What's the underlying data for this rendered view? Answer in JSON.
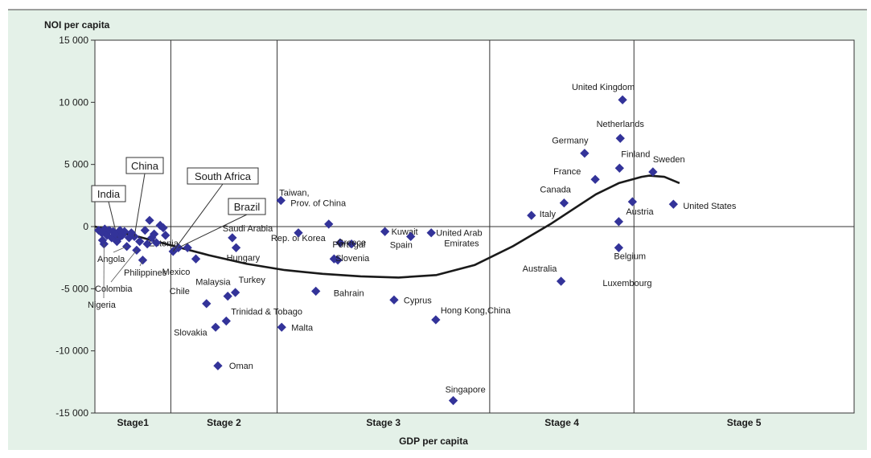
{
  "chart_data": {
    "type": "scatter",
    "ylabel": "NOI per capita",
    "xlabel": "GDP per capita",
    "ylim": [
      -15000,
      15000
    ],
    "y_ticks": [
      15000,
      10000,
      5000,
      0,
      -5000,
      -10000,
      -15000
    ],
    "y_tick_labels": [
      "15 000",
      "10 000",
      "5 000",
      "0",
      "-5 000",
      "-10 000",
      "-15 000"
    ],
    "x_axis_values": "not labeled; x positions expressed on a 0-100 relative scale",
    "grid": false,
    "stages": [
      {
        "label": "Stage1",
        "x_start": 0,
        "x_end": 10
      },
      {
        "label": "Stage 2",
        "x_start": 10,
        "x_end": 24
      },
      {
        "label": "Stage 3",
        "x_start": 24,
        "x_end": 52
      },
      {
        "label": "Stage 4",
        "x_start": 52,
        "x_end": 71
      },
      {
        "label": "Stage 5",
        "x_start": 71,
        "x_end": 100
      }
    ],
    "trend_curve": [
      [
        0,
        0
      ],
      [
        5,
        -700
      ],
      [
        10,
        -1500
      ],
      [
        15,
        -2300
      ],
      [
        20,
        -3000
      ],
      [
        25,
        -3500
      ],
      [
        30,
        -3800
      ],
      [
        35,
        -4000
      ],
      [
        40,
        -4100
      ],
      [
        45,
        -3900
      ],
      [
        50,
        -3100
      ],
      [
        55,
        -1600
      ],
      [
        60,
        200
      ],
      [
        63,
        1400
      ],
      [
        66,
        2600
      ],
      [
        69,
        3500
      ],
      [
        72,
        4000
      ],
      [
        73,
        4100
      ],
      [
        75,
        4000
      ],
      [
        77,
        3500
      ]
    ],
    "points": [
      {
        "label": "United Kingdom",
        "x": 69.5,
        "y": 10200
      },
      {
        "label": "Netherlands",
        "x": 69.2,
        "y": 7100
      },
      {
        "label": "Germany",
        "x": 64.5,
        "y": 5900
      },
      {
        "label": "Finland",
        "x": 69.1,
        "y": 4700
      },
      {
        "label": "France",
        "x": 65.9,
        "y": 3800
      },
      {
        "label": "Sweden",
        "x": 73.5,
        "y": 4400
      },
      {
        "label": "Canada",
        "x": 61.8,
        "y": 1900
      },
      {
        "label": "Austria",
        "x": 70.8,
        "y": 2000
      },
      {
        "label": "Italy",
        "x": 57.5,
        "y": 900
      },
      {
        "label": "United States",
        "x": 76.2,
        "y": 1800
      },
      {
        "label": "Belgium",
        "x": 69.0,
        "y": -1700
      },
      {
        "label": "Luxembourg",
        "x": 69.0,
        "y": 400
      },
      {
        "label": "Australia",
        "x": 61.4,
        "y": -4400
      },
      {
        "label": "Taiwan, Prov. of China",
        "x": 24.5,
        "y": 2100
      },
      {
        "label": "Kuwait",
        "x": 38.2,
        "y": -400
      },
      {
        "label": "United Arab Emirates",
        "x": 44.3,
        "y": -500
      },
      {
        "label": "Spain",
        "x": 41.6,
        "y": -800
      },
      {
        "label": "Rep. of Korea",
        "x": 32.3,
        "y": -1300
      },
      {
        "label": "Portugal",
        "x": 31.5,
        "y": -2600
      },
      {
        "label": "Slovenia",
        "x": 32.0,
        "y": -2700
      },
      {
        "label": "Greece",
        "x": 33.8,
        "y": -1400
      },
      {
        "label": "Bahrain",
        "x": 29.1,
        "y": -5200
      },
      {
        "label": "Cyprus",
        "x": 39.4,
        "y": -5900
      },
      {
        "label": "Hong Kong,China",
        "x": 44.9,
        "y": -7500
      },
      {
        "label": "Malta",
        "x": 24.6,
        "y": -8100
      },
      {
        "label": "Singapore",
        "x": 47.2,
        "y": -14000
      },
      {
        "label": "Saudi Arabia",
        "x": 18.1,
        "y": -900
      },
      {
        "label": "Hungary",
        "x": 18.6,
        "y": -1700
      },
      {
        "label": "Estonia",
        "x": 12.2,
        "y": -1700
      },
      {
        "label": "Mexico",
        "x": 13.3,
        "y": -2600
      },
      {
        "label": "Malaysia",
        "x": 17.5,
        "y": -5600
      },
      {
        "label": "Turkey",
        "x": 18.5,
        "y": -5300
      },
      {
        "label": "Chile",
        "x": 14.7,
        "y": -6200
      },
      {
        "label": "Trinidad & Tobago",
        "x": 17.3,
        "y": -7600
      },
      {
        "label": "Slovakia",
        "x": 15.9,
        "y": -8100
      },
      {
        "label": "Oman",
        "x": 16.2,
        "y": -11200
      },
      {
        "label": "Brazil",
        "x": 11.0,
        "y": -1700
      },
      {
        "label": "South Africa",
        "x": 10.3,
        "y": -2000
      },
      {
        "label": "China",
        "x": 5.2,
        "y": -800
      },
      {
        "label": "India",
        "x": 3.0,
        "y": -1000
      },
      {
        "label": "Angola",
        "x": 4.2,
        "y": -1600
      },
      {
        "label": "Colombia",
        "x": 5.5,
        "y": -1900
      },
      {
        "label": "Philippines",
        "x": 6.3,
        "y": -2700
      },
      {
        "label": "Nigeria",
        "x": 1.2,
        "y": -1400
      },
      {
        "label": "",
        "x": 26.8,
        "y": -500
      },
      {
        "label": "",
        "x": 30.8,
        "y": 200
      },
      {
        "label": "",
        "x": 0.5,
        "y": -300
      },
      {
        "label": "",
        "x": 0.9,
        "y": -500
      },
      {
        "label": "",
        "x": 1.3,
        "y": -200
      },
      {
        "label": "",
        "x": 1.6,
        "y": -700
      },
      {
        "label": "",
        "x": 1.9,
        "y": -300
      },
      {
        "label": "",
        "x": 2.2,
        "y": -900
      },
      {
        "label": "",
        "x": 2.4,
        "y": -400
      },
      {
        "label": "",
        "x": 2.7,
        "y": -600
      },
      {
        "label": "",
        "x": 3.3,
        "y": -300
      },
      {
        "label": "",
        "x": 3.6,
        "y": -700
      },
      {
        "label": "",
        "x": 3.9,
        "y": -400
      },
      {
        "label": "",
        "x": 4.5,
        "y": -900
      },
      {
        "label": "",
        "x": 4.8,
        "y": -500
      },
      {
        "label": "",
        "x": 5.9,
        "y": -1200
      },
      {
        "label": "",
        "x": 6.6,
        "y": -300
      },
      {
        "label": "",
        "x": 6.9,
        "y": -1400
      },
      {
        "label": "",
        "x": 7.2,
        "y": 500
      },
      {
        "label": "",
        "x": 7.5,
        "y": -900
      },
      {
        "label": "",
        "x": 7.8,
        "y": -600
      },
      {
        "label": "",
        "x": 8.1,
        "y": -1300
      },
      {
        "label": "",
        "x": 8.6,
        "y": 100
      },
      {
        "label": "",
        "x": 9.0,
        "y": -100
      },
      {
        "label": "",
        "x": 9.3,
        "y": -700
      },
      {
        "label": "",
        "x": 1.0,
        "y": -1100
      },
      {
        "label": "",
        "x": 2.9,
        "y": -1200
      }
    ],
    "boxed_labels": [
      "China",
      "India",
      "South Africa",
      "Brazil"
    ],
    "colors": {
      "background": "#e4f1e8",
      "point": "#333399",
      "curve": "#1a1a1a",
      "plot_bg": "#ffffff",
      "axis": "#333333"
    }
  }
}
